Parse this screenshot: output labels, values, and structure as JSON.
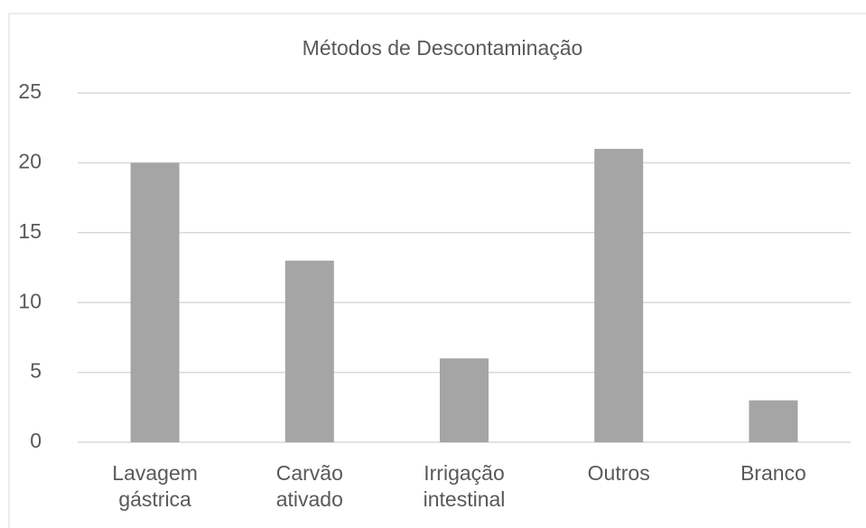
{
  "chart_data": {
    "type": "bar",
    "title": "Métodos de Descontaminação",
    "categories": [
      "Lavagem gástrica",
      "Carvão ativado",
      "Irrigação intestinal",
      "Outros",
      "Branco"
    ],
    "values": [
      20,
      13,
      6,
      21,
      3
    ],
    "color": "#a5a5a5",
    "ylim": [
      0,
      25
    ],
    "yticks": [
      0,
      5,
      10,
      15,
      20,
      25
    ],
    "grid": true
  }
}
